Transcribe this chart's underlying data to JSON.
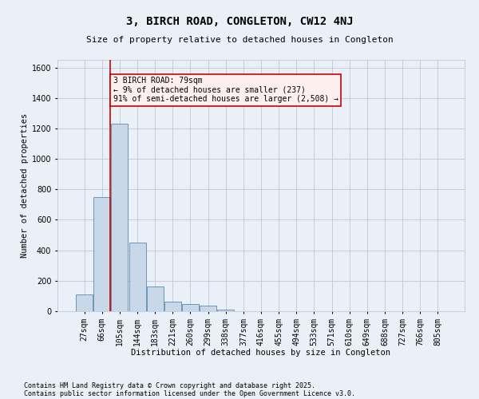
{
  "title1": "3, BIRCH ROAD, CONGLETON, CW12 4NJ",
  "title2": "Size of property relative to detached houses in Congleton",
  "xlabel": "Distribution of detached houses by size in Congleton",
  "ylabel": "Number of detached properties",
  "categories": [
    "27sqm",
    "66sqm",
    "105sqm",
    "144sqm",
    "183sqm",
    "221sqm",
    "260sqm",
    "299sqm",
    "338sqm",
    "377sqm",
    "416sqm",
    "455sqm",
    "494sqm",
    "533sqm",
    "571sqm",
    "610sqm",
    "649sqm",
    "688sqm",
    "727sqm",
    "766sqm",
    "805sqm"
  ],
  "bar_values": [
    110,
    750,
    1230,
    450,
    160,
    65,
    45,
    35,
    10,
    0,
    0,
    0,
    0,
    0,
    0,
    0,
    0,
    0,
    0,
    0,
    0
  ],
  "bar_color": "#c8d8e8",
  "bar_edge_color": "#5a8ab0",
  "grid_color": "#c0c8d8",
  "background_color": "#eaf0f8",
  "vline_color": "#cc0000",
  "annotation_text": "3 BIRCH ROAD: 79sqm\n← 9% of detached houses are smaller (237)\n91% of semi-detached houses are larger (2,508) →",
  "annotation_box_facecolor": "#fff0f0",
  "annotation_box_edgecolor": "#cc0000",
  "ylim": [
    0,
    1650
  ],
  "yticks": [
    0,
    200,
    400,
    600,
    800,
    1000,
    1200,
    1400,
    1600
  ],
  "footer1": "Contains HM Land Registry data © Crown copyright and database right 2025.",
  "footer2": "Contains public sector information licensed under the Open Government Licence v3.0.",
  "title1_fontsize": 10,
  "title2_fontsize": 8,
  "xlabel_fontsize": 7.5,
  "ylabel_fontsize": 7.5,
  "tick_fontsize": 7,
  "annotation_fontsize": 7,
  "footer_fontsize": 6
}
